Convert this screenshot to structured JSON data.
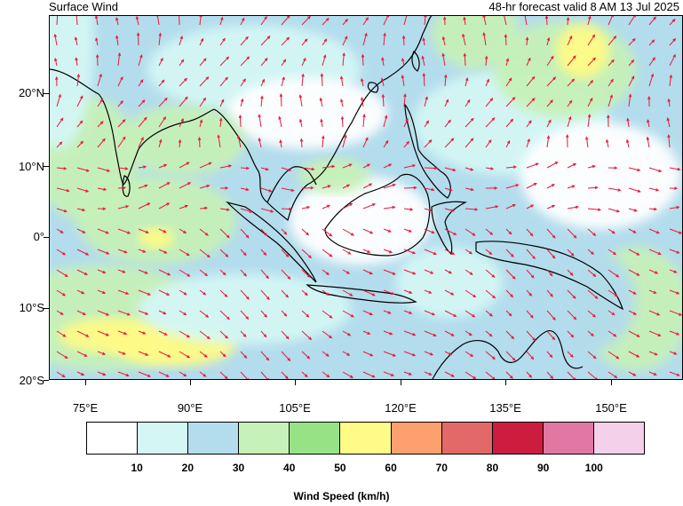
{
  "header": {
    "title": "Surface Wind",
    "valid_time": "48-hr forecast valid 8 AM 13 Jul 2025"
  },
  "map": {
    "lat_labels": [
      "20°N",
      "10°N",
      "0°",
      "10°S",
      "20°S"
    ],
    "lon_labels": [
      "75°E",
      "90°E",
      "105°E",
      "120°E",
      "135°E",
      "150°E"
    ],
    "arrow_color": "#e8193c",
    "coastline_color": "#000000"
  },
  "colorbar": {
    "title": "Wind Speed (km/h)",
    "levels": [
      "10",
      "20",
      "30",
      "40",
      "50",
      "60",
      "70",
      "80",
      "90",
      "100"
    ],
    "colors": [
      "#ffffff",
      "#d4f7f5",
      "#b3dcec",
      "#c6f1b8",
      "#98e286",
      "#fffb86",
      "#fca06d",
      "#e36868",
      "#cc1d3f",
      "#e078a3",
      "#f5d0ea"
    ]
  }
}
